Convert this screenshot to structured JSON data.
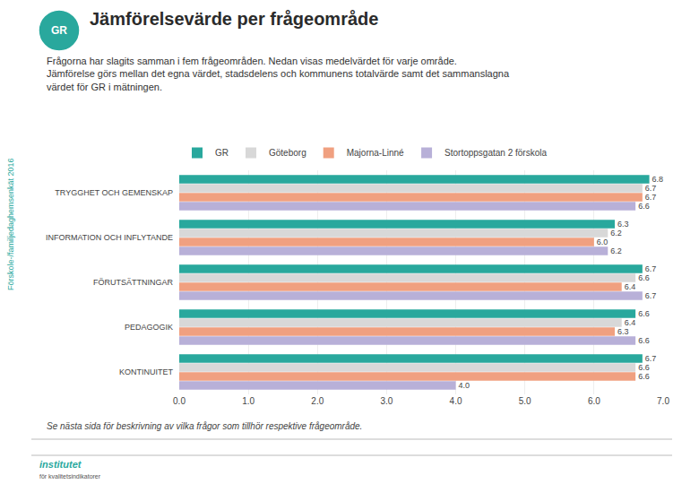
{
  "chart_data": {
    "type": "bar",
    "orientation": "horizontal",
    "title": "Jämförelsevärde per frågeområde",
    "subtitle": [
      "Frågorna har slagits samman i fem frågeområden. Nedan visas medelvärdet för varje område.",
      "Jämförelse görs mellan det egna värdet, stadsdelens och kommunens totalvärde samt det sammanslagna",
      "värdet för GR i mätningen."
    ],
    "annotations": [
      "Förskole-/familjedaghemsenkät 2016",
      "Se nästa sida för beskrivning av vilka frågor som tillhör respektive frågeområde.",
      "GR",
      "institutet",
      "för kvalitetsindikatorer"
    ],
    "categories": [
      "TRYGGHET OCH GEMENSKAP",
      "INFORMATION OCH INFLYTANDE",
      "FÖRUTSÄTTNINGAR",
      "PEDAGOGIK",
      "KONTINUITET"
    ],
    "series": [
      {
        "name": "GR",
        "color": "#29A89D",
        "values": [
          6.8,
          6.3,
          6.7,
          6.6,
          6.7
        ],
        "value_labels": [
          "6.8",
          "6.3",
          "6.7",
          "6.6",
          "6.7"
        ]
      },
      {
        "name": "Göteborg",
        "color": "#D8D8D8",
        "values": [
          6.7,
          6.2,
          6.6,
          6.4,
          6.6
        ],
        "value_labels": [
          "6.7",
          "6.2",
          "6.6",
          "6.4",
          "6.6"
        ]
      },
      {
        "name": "Majorna-Linné",
        "color": "#F0A080",
        "values": [
          6.7,
          6.0,
          6.4,
          6.3,
          6.6
        ],
        "value_labels": [
          "6.7",
          "6.0",
          "6.4",
          "6.3",
          "6.6"
        ]
      },
      {
        "name": "Stortoppsgatan 2 förskola",
        "color": "#B8B0D8",
        "values": [
          6.6,
          6.2,
          6.7,
          6.6,
          4.0
        ],
        "value_labels": [
          "6.6",
          "6.2",
          "6.7",
          "6.6",
          "4.0"
        ]
      }
    ],
    "xlim": [
      0.0,
      7.0
    ],
    "xticks": [
      {
        "value": 0.0,
        "label": "0.0"
      },
      {
        "value": 1.0,
        "label": "1.0"
      },
      {
        "value": 2.0,
        "label": "2.0"
      },
      {
        "value": 3.0,
        "label": "3.0"
      },
      {
        "value": 4.0,
        "label": "4.0"
      },
      {
        "value": 5.0,
        "label": "5.0"
      },
      {
        "value": 6.0,
        "label": "6.0"
      },
      {
        "value": 7.0,
        "label": "7.0"
      }
    ],
    "grid": true,
    "legend": "top left",
    "data_labels": true
  }
}
